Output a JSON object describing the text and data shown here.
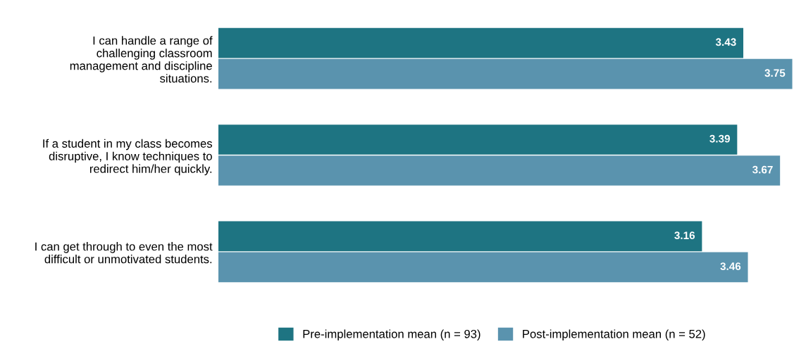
{
  "chart_data": {
    "type": "bar",
    "orientation": "horizontal",
    "categories": [
      "I can handle a range of\nchallenging classroom\nmanagement and discipline\nsituations.",
      "If a student in my class becomes\ndisruptive, I know techniques to\nredirect him/her quickly.",
      "I can get through to even the most\ndifficult or unmotivated students."
    ],
    "series": [
      {
        "name": "Pre-implementation mean (n = 93)",
        "color": "#1e7482",
        "values": [
          3.43,
          3.39,
          3.16
        ]
      },
      {
        "name": "Post-implementation mean (n = 52)",
        "color": "#5a93ae",
        "values": [
          3.75,
          3.67,
          3.46
        ]
      }
    ],
    "data_labels": true,
    "legend": "bottom",
    "grid": false
  }
}
